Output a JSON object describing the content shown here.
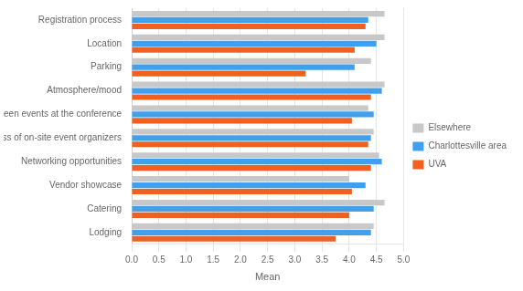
{
  "chart_data": {
    "type": "bar",
    "orientation": "horizontal",
    "categories": [
      "Registration process",
      "Location",
      "Parking",
      "Atmosphere/mood",
      "Navigation between events at the conference",
      "Helpfulness of on-site event organizers",
      "Networking opportunities",
      "Vendor showcase",
      "Catering",
      "Lodging"
    ],
    "series": [
      {
        "name": "Elsewhere",
        "color": "#c8c8c8",
        "values": [
          4.65,
          4.65,
          4.4,
          4.65,
          4.35,
          4.45,
          4.55,
          4.0,
          4.65,
          4.45
        ]
      },
      {
        "name": "Charlottesville area",
        "color": "#3fa0f0",
        "values": [
          4.35,
          4.5,
          4.1,
          4.6,
          4.45,
          4.4,
          4.6,
          4.3,
          4.45,
          4.4
        ]
      },
      {
        "name": "UVA",
        "color": "#f06020",
        "values": [
          4.3,
          4.1,
          3.2,
          4.4,
          4.05,
          4.35,
          4.4,
          4.05,
          4.0,
          3.75
        ]
      }
    ],
    "xlabel": "Mean",
    "xlim": [
      0,
      5.0
    ],
    "xticks": [
      {
        "value": 0.0,
        "label": "0.0"
      },
      0.5,
      {
        "value": 1.0,
        "label": "1.0"
      },
      1.5,
      {
        "value": 2.0,
        "label": "2.0"
      },
      2.5,
      {
        "value": 3.0,
        "label": "3.0"
      },
      3.5,
      {
        "value": 4.0,
        "label": "4.0"
      },
      4.5,
      {
        "value": 5.0,
        "label": "5.0"
      }
    ],
    "grid": true,
    "legend": "right"
  }
}
